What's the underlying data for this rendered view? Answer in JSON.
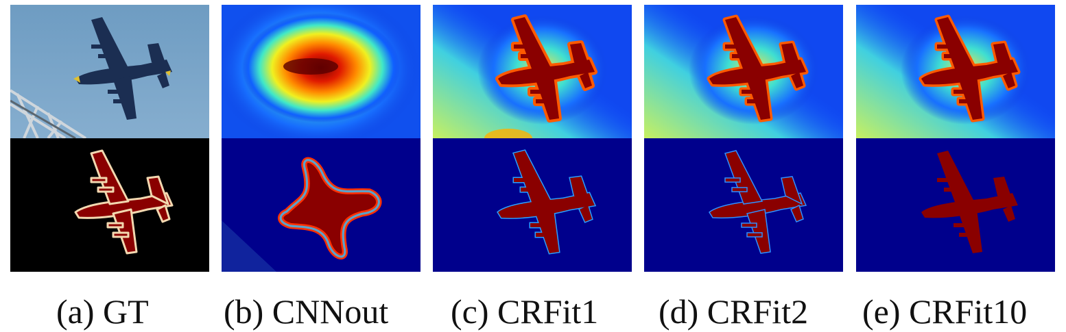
{
  "figure": {
    "captions": [
      "(a) GT",
      "(b) CNNout",
      "(c) CRFit1",
      "(d) CRFit2",
      "(e) CRFit10"
    ]
  }
}
